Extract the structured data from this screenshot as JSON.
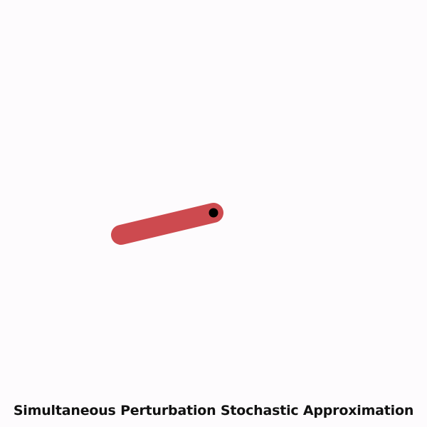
{
  "caption": "Simultaneous Perturbation Stochastic Approximation",
  "colors": {
    "background": "#fdfbfd",
    "pendulum_rod": "#cd4a4f",
    "pivot": "#000000",
    "caption_text": "#111111"
  }
}
